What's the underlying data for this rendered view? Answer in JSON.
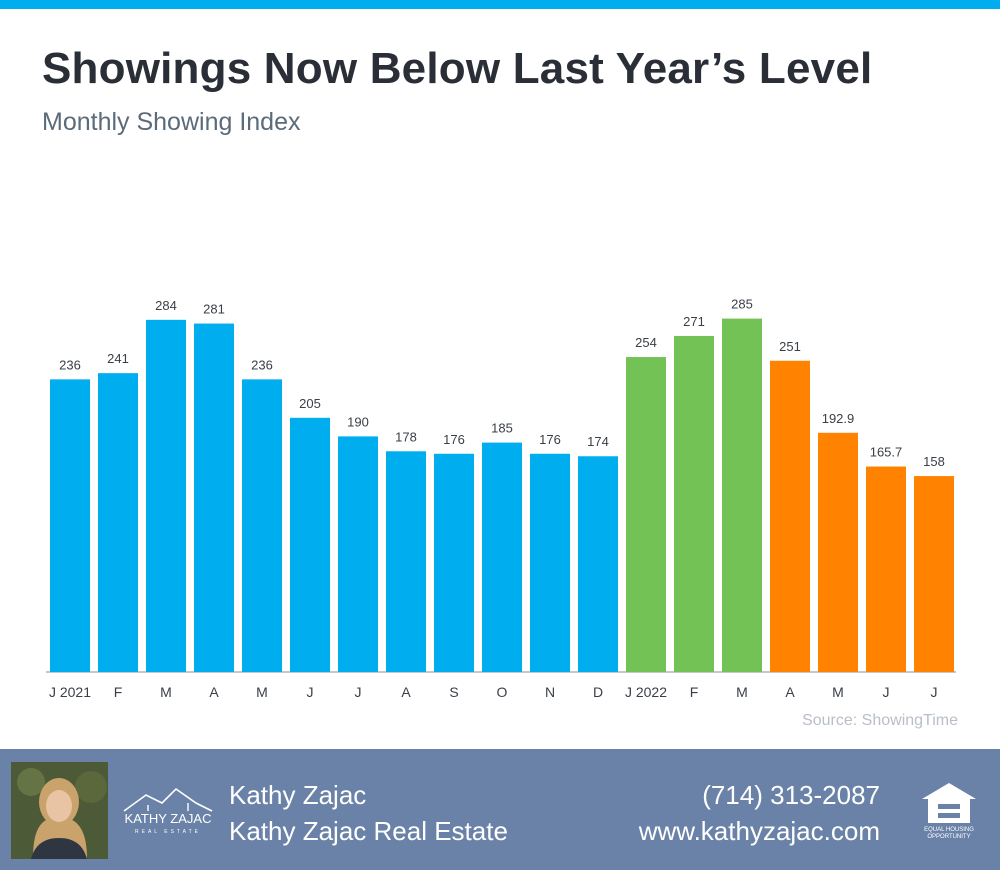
{
  "header": {
    "title": "Showings Now Below Last Year’s Level",
    "subtitle": "Monthly Showing Index"
  },
  "chart_data": {
    "type": "bar",
    "title": "Showings Now Below Last Year’s Level",
    "subtitle": "Monthly Showing Index",
    "categories": [
      "J 2021",
      "F",
      "M",
      "A",
      "M",
      "J",
      "J",
      "A",
      "S",
      "O",
      "N",
      "D",
      "J 2022",
      "F",
      "M",
      "A",
      "M",
      "J",
      "J"
    ],
    "values": [
      236,
      241,
      284,
      281,
      236,
      205,
      190,
      178,
      176,
      185,
      176,
      174,
      254,
      271,
      285,
      251,
      192.9,
      165.7,
      158
    ],
    "value_labels": [
      "236",
      "241",
      "284",
      "281",
      "236",
      "205",
      "190",
      "178",
      "176",
      "185",
      "176",
      "174",
      "254",
      "271",
      "285",
      "251",
      "192.9",
      "165.7",
      "158"
    ],
    "bar_colors": [
      "#00AEEF",
      "#00AEEF",
      "#00AEEF",
      "#00AEEF",
      "#00AEEF",
      "#00AEEF",
      "#00AEEF",
      "#00AEEF",
      "#00AEEF",
      "#00AEEF",
      "#00AEEF",
      "#00AEEF",
      "#72C255",
      "#72C255",
      "#72C255",
      "#FF8300",
      "#FF8300",
      "#FF8300",
      "#FF8300"
    ],
    "ylim": [
      0,
      300
    ],
    "xlabel": "",
    "ylabel": "",
    "grid": false,
    "legend": "none"
  },
  "source": "Source: ShowingTime",
  "footer": {
    "photo_icon": "agent-portrait",
    "logo_text": "KATHY ZAJAC",
    "logo_subtext": "REAL ESTATE",
    "agent_name": "Kathy Zajac",
    "company": "Kathy Zajac Real Estate",
    "phone": "(714) 313-2087",
    "website": "www.kathyzajac.com",
    "eho_line1": "EQUAL HOUSING",
    "eho_line2": "OPPORTUNITY"
  },
  "colors": {
    "accent": "#00AEEF",
    "green": "#72C255",
    "orange": "#FF8300",
    "footer": "#6a82a8"
  }
}
